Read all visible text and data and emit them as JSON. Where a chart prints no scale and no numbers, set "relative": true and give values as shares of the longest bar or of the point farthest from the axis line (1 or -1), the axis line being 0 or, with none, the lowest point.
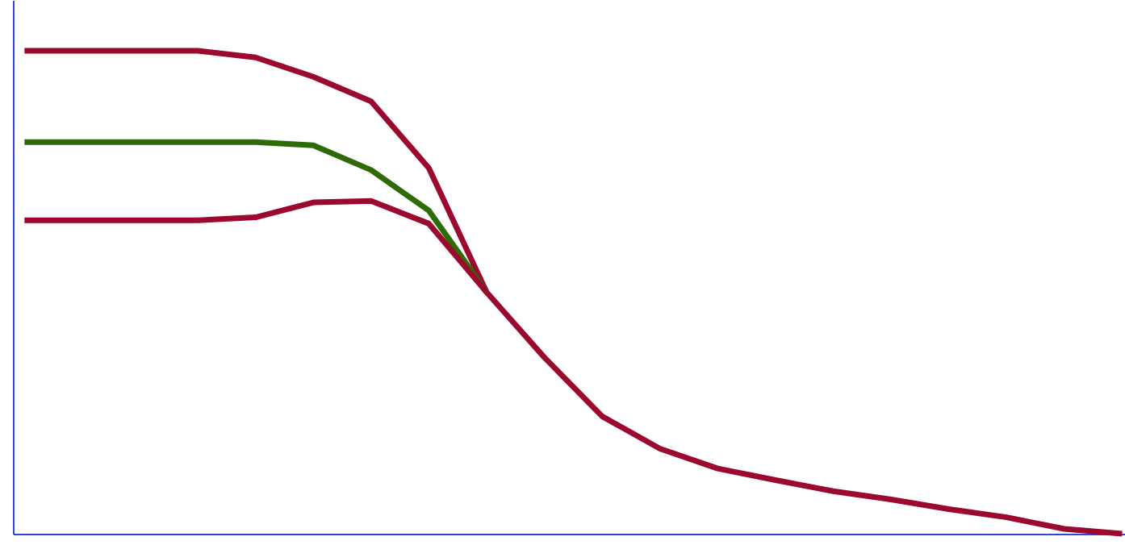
{
  "chart_data": {
    "type": "line",
    "relative": true,
    "marker": "none",
    "line_style": "solid",
    "legend": false,
    "categories": [
      null,
      null,
      null,
      null,
      null,
      null,
      null,
      null,
      null,
      null,
      null,
      null,
      null,
      null,
      null,
      null,
      null,
      null,
      null,
      null
    ],
    "series": [
      {
        "color": "#9b0a2e",
        "values": [
          1.0,
          1.0,
          1.0,
          1.0,
          0.986,
          0.946,
          0.895,
          0.757,
          0.5,
          0.365,
          0.243,
          0.176,
          0.135,
          0.111,
          0.088,
          0.071,
          0.051,
          0.034,
          0.01,
          0.0
        ]
      },
      {
        "color": "#2e6b06",
        "values": [
          0.811,
          0.811,
          0.811,
          0.811,
          0.811,
          0.804,
          0.753,
          0.669,
          0.5,
          null,
          null,
          null,
          null,
          null,
          null,
          null,
          null,
          null,
          null,
          null
        ]
      },
      {
        "color": "#9b0a2e",
        "values": [
          0.649,
          0.649,
          0.649,
          0.649,
          0.655,
          0.686,
          0.689,
          0.642,
          0.5,
          null,
          null,
          null,
          null,
          null,
          null,
          null,
          null,
          null,
          null,
          null
        ]
      }
    ]
  }
}
